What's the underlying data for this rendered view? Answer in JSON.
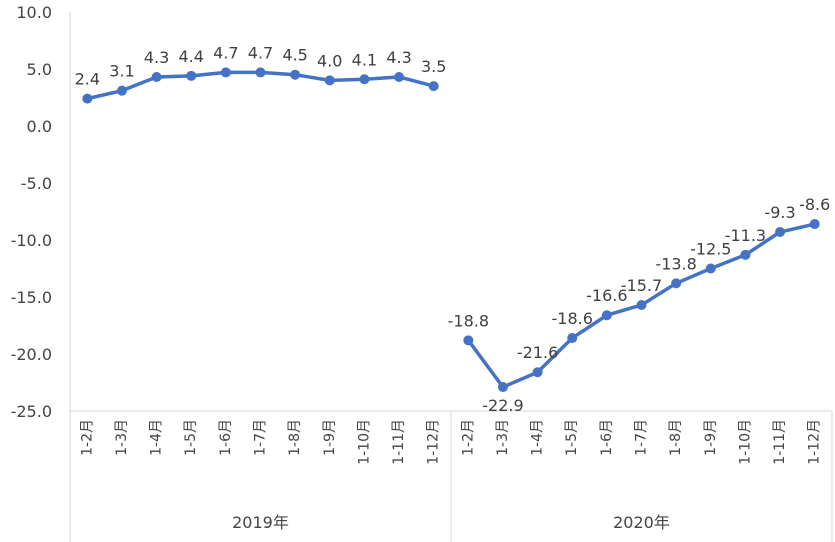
{
  "chart_data": {
    "type": "line",
    "ylim": [
      -25,
      10
    ],
    "y_ticks": [
      "10.0",
      "5.0",
      "0.0",
      "-5.0",
      "-10.0",
      "-15.0",
      "-20.0",
      "-25.0"
    ],
    "grid": false,
    "legend": "none",
    "line_color": "#4472C4",
    "groups": [
      {
        "name": "2019年",
        "categories": [
          "1-2月",
          "1-3月",
          "1-4月",
          "1-5月",
          "1-6月",
          "1-7月",
          "1-8月",
          "1-9月",
          "1-10月",
          "1-11月",
          "1-12月"
        ],
        "values": [
          2.4,
          3.1,
          4.3,
          4.4,
          4.7,
          4.7,
          4.5,
          4.0,
          4.1,
          4.3,
          3.5
        ],
        "labels": [
          "2.4",
          "3.1",
          "4.3",
          "4.4",
          "4.7",
          "4.7",
          "4.5",
          "4.0",
          "4.1",
          "4.3",
          "3.5"
        ]
      },
      {
        "name": "2020年",
        "categories": [
          "1-2月",
          "1-3月",
          "1-4月",
          "1-5月",
          "1-6月",
          "1-7月",
          "1-8月",
          "1-9月",
          "1-10月",
          "1-11月",
          "1-12月"
        ],
        "values": [
          -18.8,
          -22.9,
          -21.6,
          -18.6,
          -16.6,
          -15.7,
          -13.8,
          -12.5,
          -11.3,
          -9.3,
          -8.6
        ],
        "labels": [
          "-18.8",
          "-22.9",
          "-21.6",
          "-18.6",
          "-16.6",
          "-15.7",
          "-13.8",
          "-12.5",
          "-11.3",
          "-9.3",
          "-8.6"
        ]
      }
    ]
  }
}
